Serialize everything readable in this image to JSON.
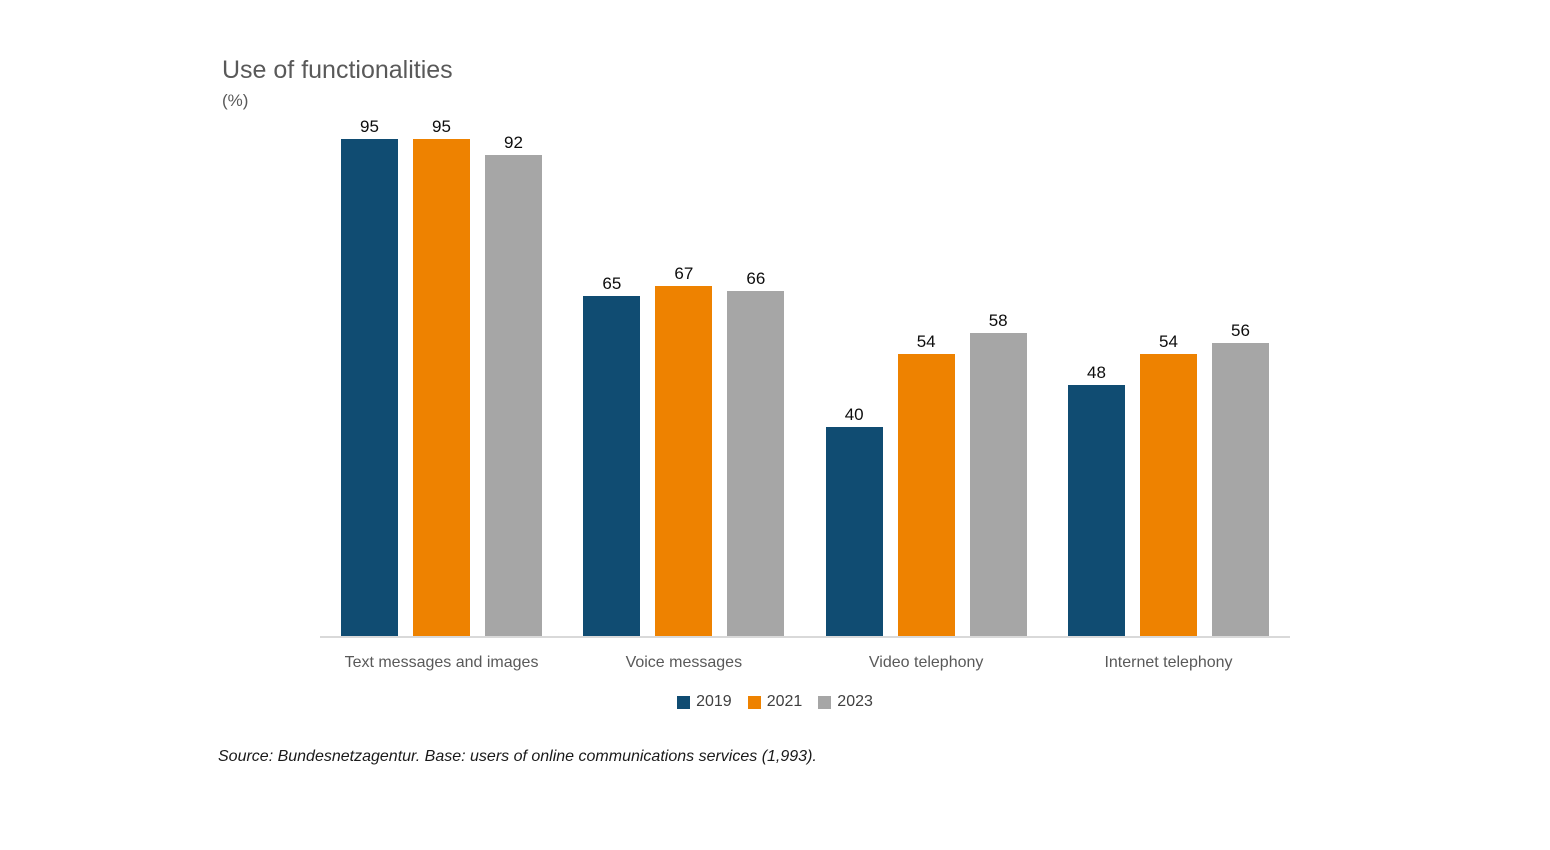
{
  "page": {
    "background": "#ffffff"
  },
  "header": {
    "title": "Use of functionalities",
    "subtitle": "(%)"
  },
  "footer": {
    "source": "Source: Bundesnetzagentur. Base: users of online communications services (1,993)."
  },
  "chart_data": {
    "type": "bar",
    "title": "Use of functionalities",
    "subtitle": "(%)",
    "unit": "%",
    "categories": [
      "Text messages and images",
      "Voice messages",
      "Video telephony",
      "Internet telephony"
    ],
    "series": [
      {
        "name": "2019",
        "color": "#104c72",
        "values": [
          95,
          65,
          40,
          48
        ]
      },
      {
        "name": "2021",
        "color": "#ee8200",
        "values": [
          95,
          67,
          54,
          54
        ]
      },
      {
        "name": "2023",
        "color": "#a6a6a6",
        "values": [
          92,
          66,
          58,
          56
        ]
      }
    ],
    "ylim": [
      0,
      100
    ],
    "grid": false,
    "value_labels": true,
    "legend_position": "bottom",
    "axis_line_color": "#d9d9d9"
  }
}
